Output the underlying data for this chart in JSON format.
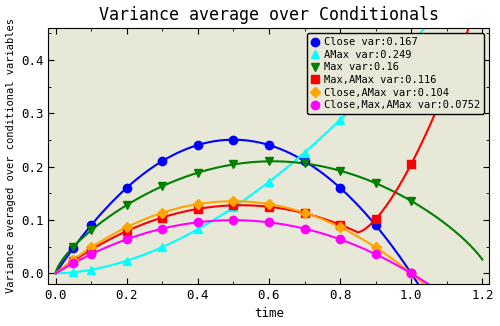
{
  "title": "Variance average over Conditionals",
  "xlabel": "time",
  "ylabel": "Variance averaged over conditional variables",
  "xlim": [
    -0.02,
    1.22
  ],
  "ylim": [
    -0.02,
    0.46
  ],
  "xticks": [
    0,
    0.2,
    0.4,
    0.6,
    0.8,
    1.0,
    1.2
  ],
  "yticks": [
    0,
    0.1,
    0.2,
    0.3,
    0.4
  ],
  "plot_bg": "#e8e8d8",
  "fig_bg": "#ffffff",
  "series": [
    {
      "label": "Close var:0.167",
      "color": "blue",
      "marker": "o",
      "markersize": 6,
      "type": "close"
    },
    {
      "label": "AMax var:0.249",
      "color": "cyan",
      "marker": "^",
      "markersize": 6,
      "type": "amax"
    },
    {
      "label": "Max var:0.16",
      "color": "green",
      "marker": "v",
      "markersize": 6,
      "type": "max"
    },
    {
      "label": "Max,AMax var:0.116",
      "color": "red",
      "marker": "s",
      "markersize": 6,
      "type": "max_amax"
    },
    {
      "label": "Close,AMax var:0.104",
      "color": "orange",
      "marker": "D",
      "markersize": 5,
      "type": "close_amax"
    },
    {
      "label": "Close,Max,AMax var:0.0752",
      "color": "magenta",
      "marker": "o",
      "markersize": 6,
      "type": "close_max_amax"
    }
  ],
  "dot_times": [
    0.05,
    0.1,
    0.2,
    0.3,
    0.4,
    0.5,
    0.6,
    0.7,
    0.8,
    0.9,
    1.0
  ],
  "legend_fontsize": 7.5,
  "tick_fontsize": 9,
  "title_fontsize": 12,
  "label_fontsize": 9
}
